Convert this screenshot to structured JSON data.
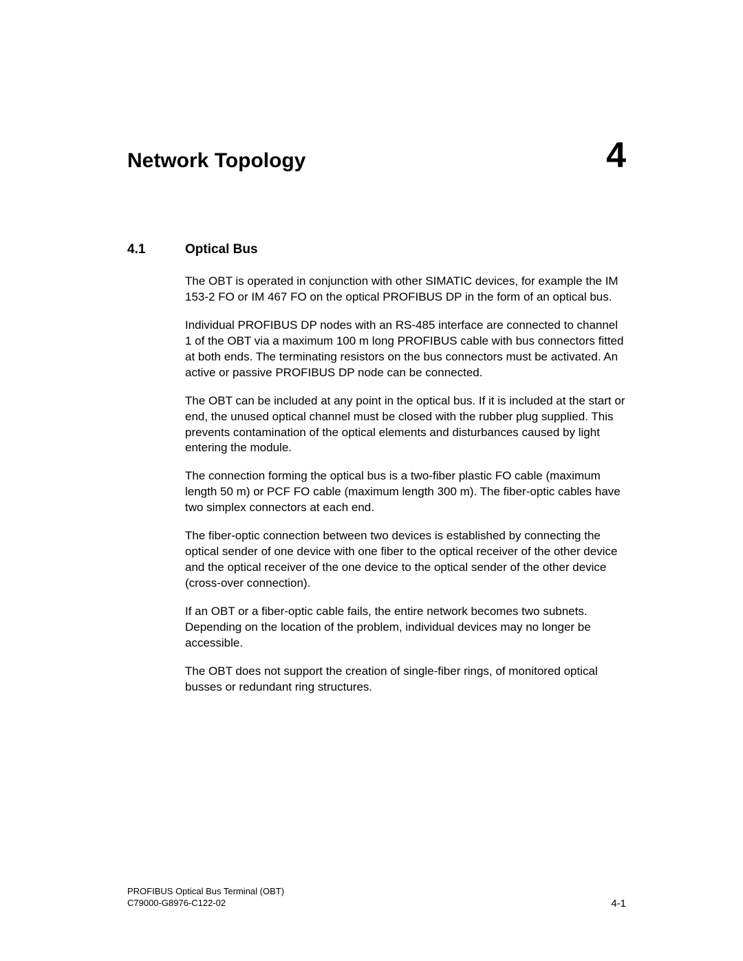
{
  "chapter": {
    "title": "Network Topology",
    "number": "4"
  },
  "section": {
    "number": "4.1",
    "title": "Optical Bus"
  },
  "paragraphs": [
    "The OBT is operated in conjunction with other SIMATIC devices, for example the IM 153-2 FO or IM 467 FO on the optical PROFIBUS DP in the form of an optical bus.",
    "Individual PROFIBUS DP nodes with an RS-485 interface are connected to channel 1 of the OBT via a maximum 100 m long PROFIBUS cable with bus connectors fitted at both ends. The terminating resistors on the bus connectors must be activated. An active or passive PROFIBUS DP node can be connected.",
    "The OBT can be included at any point in the optical bus. If it is included at the start or end, the unused optical channel must be closed with the rubber plug supplied. This prevents contamination of the optical elements and disturbances caused by light entering the module.",
    "The connection forming the optical bus is a two-fiber plastic FO cable (maximum length 50 m) or PCF FO cable (maximum length 300 m). The fiber-optic cables have two simplex connectors at each end.",
    "The fiber-optic connection between two devices is established by connecting the optical sender of one device with one fiber to the optical receiver of the other device and the optical receiver of the one device to the optical sender of the other device (cross-over connection).",
    "If an OBT or a fiber-optic cable fails, the entire network becomes two subnets. Depending on the location of the problem, individual devices may no longer be accessible.",
    "The OBT does not support the creation of single-fiber rings, of monitored optical busses or redundant ring structures."
  ],
  "footer": {
    "line1": "PROFIBUS Optical Bus Terminal (OBT)",
    "line2": "C79000-G8976-C122-02",
    "page": "4-1"
  }
}
